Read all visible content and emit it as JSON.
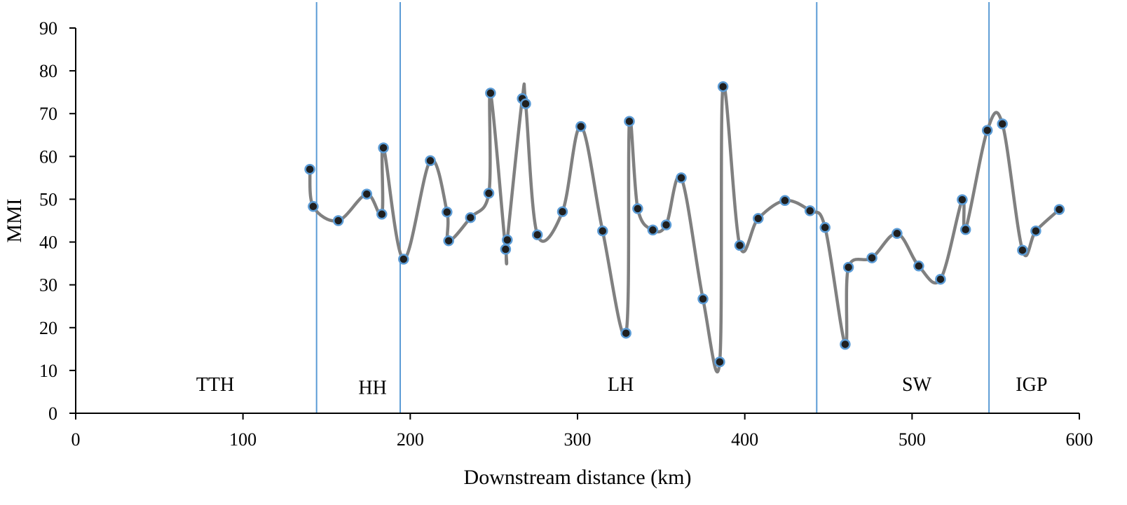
{
  "chart_data": {
    "type": "line",
    "title": "",
    "xlabel": "Downstream distance (km)",
    "ylabel": "MMI",
    "xlim": [
      0,
      600
    ],
    "ylim": [
      0,
      90
    ],
    "xticks": [
      0,
      100,
      200,
      300,
      400,
      500,
      600
    ],
    "yticks": [
      0,
      10,
      20,
      30,
      40,
      50,
      60,
      70,
      80,
      90
    ],
    "grid": false,
    "legend": "none",
    "smooth": true,
    "line_color": "#808080",
    "marker_fill": "#1f1f1f",
    "marker_edge": "#5b9bd5",
    "divider_color": "#5b9bd5",
    "series": [
      {
        "x": [
          140,
          142,
          157,
          174,
          183,
          184,
          196,
          212,
          222,
          223,
          236,
          247,
          248,
          257,
          258,
          267,
          269,
          276,
          291,
          302,
          315,
          329,
          331,
          336,
          345,
          353,
          362,
          375,
          385,
          387,
          397,
          408,
          424,
          439,
          448,
          460,
          462,
          476,
          491,
          504,
          517,
          530,
          532,
          545,
          554,
          566,
          574,
          588
        ],
        "y": [
          57,
          48.3,
          45,
          51.2,
          46.5,
          62,
          36,
          59,
          47,
          40.3,
          45.7,
          51.4,
          74.8,
          38.3,
          40.5,
          73.5,
          72.3,
          41.7,
          47.1,
          67,
          42.6,
          18.7,
          68.2,
          47.8,
          42.8,
          44,
          55,
          26.7,
          12,
          76.3,
          39.2,
          45.5,
          49.7,
          47.3,
          43.4,
          16.1,
          34.1,
          36.3,
          42,
          34.4,
          31.3,
          49.9,
          42.9,
          66.1,
          67.6,
          38.1,
          42.6,
          47.6
        ]
      }
    ],
    "dividers": [
      144,
      194,
      443,
      546
    ],
    "zones": [
      {
        "label": "TTH",
        "x": 72,
        "y": 5.2
      },
      {
        "label": "HH",
        "x": 169,
        "y": 4.5
      },
      {
        "label": "LH",
        "x": 318,
        "y": 5.2
      },
      {
        "label": "SW",
        "x": 494,
        "y": 5.2
      },
      {
        "label": "IGP",
        "x": 562,
        "y": 5.2
      }
    ]
  }
}
